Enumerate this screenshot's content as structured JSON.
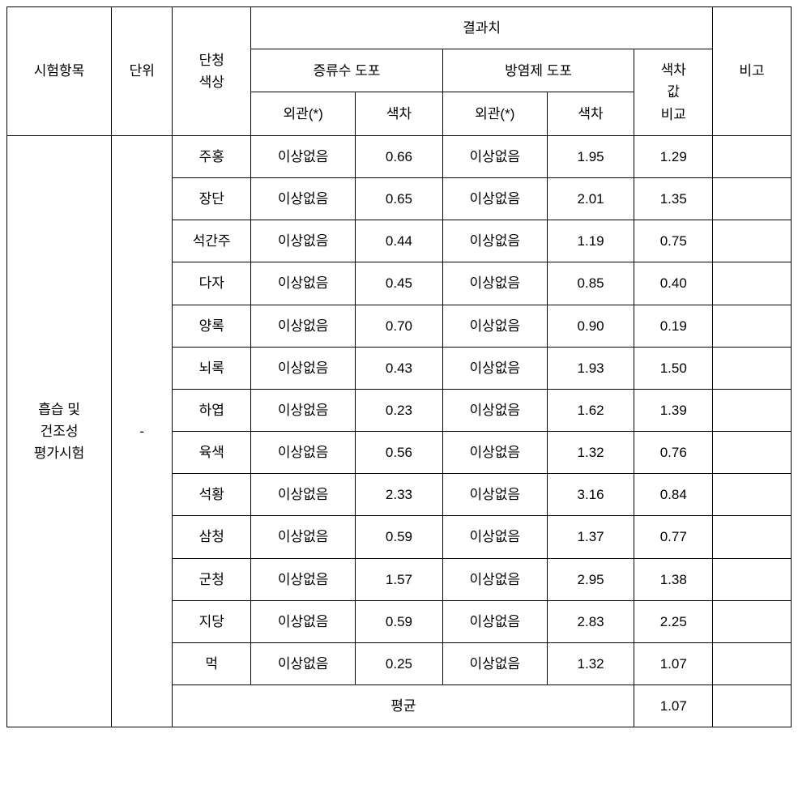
{
  "headers": {
    "test_item": "시험항목",
    "unit": "단위",
    "color": "단청\n색상",
    "result": "결과치",
    "distilled_water": "증류수 도포",
    "flame_retardant": "방염제 도포",
    "appearance": "외관(*)",
    "color_diff": "색차",
    "color_diff_compare": "색차\n값\n비교",
    "note": "비고"
  },
  "test_item_label": "흡습 및\n건조성\n평가시험",
  "unit_value": "-",
  "average_label": "평균",
  "average_value": "1.07",
  "rows": [
    {
      "color": "주홍",
      "dw_app": "이상없음",
      "dw_diff": "0.66",
      "fr_app": "이상없음",
      "fr_diff": "1.95",
      "compare": "1.29",
      "note": ""
    },
    {
      "color": "장단",
      "dw_app": "이상없음",
      "dw_diff": "0.65",
      "fr_app": "이상없음",
      "fr_diff": "2.01",
      "compare": "1.35",
      "note": ""
    },
    {
      "color": "석간주",
      "dw_app": "이상없음",
      "dw_diff": "0.44",
      "fr_app": "이상없음",
      "fr_diff": "1.19",
      "compare": "0.75",
      "note": ""
    },
    {
      "color": "다자",
      "dw_app": "이상없음",
      "dw_diff": "0.45",
      "fr_app": "이상없음",
      "fr_diff": "0.85",
      "compare": "0.40",
      "note": ""
    },
    {
      "color": "양록",
      "dw_app": "이상없음",
      "dw_diff": "0.70",
      "fr_app": "이상없음",
      "fr_diff": "0.90",
      "compare": "0.19",
      "note": ""
    },
    {
      "color": "뇌록",
      "dw_app": "이상없음",
      "dw_diff": "0.43",
      "fr_app": "이상없음",
      "fr_diff": "1.93",
      "compare": "1.50",
      "note": ""
    },
    {
      "color": "하엽",
      "dw_app": "이상없음",
      "dw_diff": "0.23",
      "fr_app": "이상없음",
      "fr_diff": "1.62",
      "compare": "1.39",
      "note": ""
    },
    {
      "color": "육색",
      "dw_app": "이상없음",
      "dw_diff": "0.56",
      "fr_app": "이상없음",
      "fr_diff": "1.32",
      "compare": "0.76",
      "note": ""
    },
    {
      "color": "석황",
      "dw_app": "이상없음",
      "dw_diff": "2.33",
      "fr_app": "이상없음",
      "fr_diff": "3.16",
      "compare": "0.84",
      "note": ""
    },
    {
      "color": "삼청",
      "dw_app": "이상없음",
      "dw_diff": "0.59",
      "fr_app": "이상없음",
      "fr_diff": "1.37",
      "compare": "0.77",
      "note": ""
    },
    {
      "color": "군청",
      "dw_app": "이상없음",
      "dw_diff": "1.57",
      "fr_app": "이상없음",
      "fr_diff": "2.95",
      "compare": "1.38",
      "note": ""
    },
    {
      "color": "지당",
      "dw_app": "이상없음",
      "dw_diff": "0.59",
      "fr_app": "이상없음",
      "fr_diff": "2.83",
      "compare": "2.25",
      "note": ""
    },
    {
      "color": "먹",
      "dw_app": "이상없음",
      "dw_diff": "0.25",
      "fr_app": "이상없음",
      "fr_diff": "1.32",
      "compare": "1.07",
      "note": ""
    }
  ]
}
